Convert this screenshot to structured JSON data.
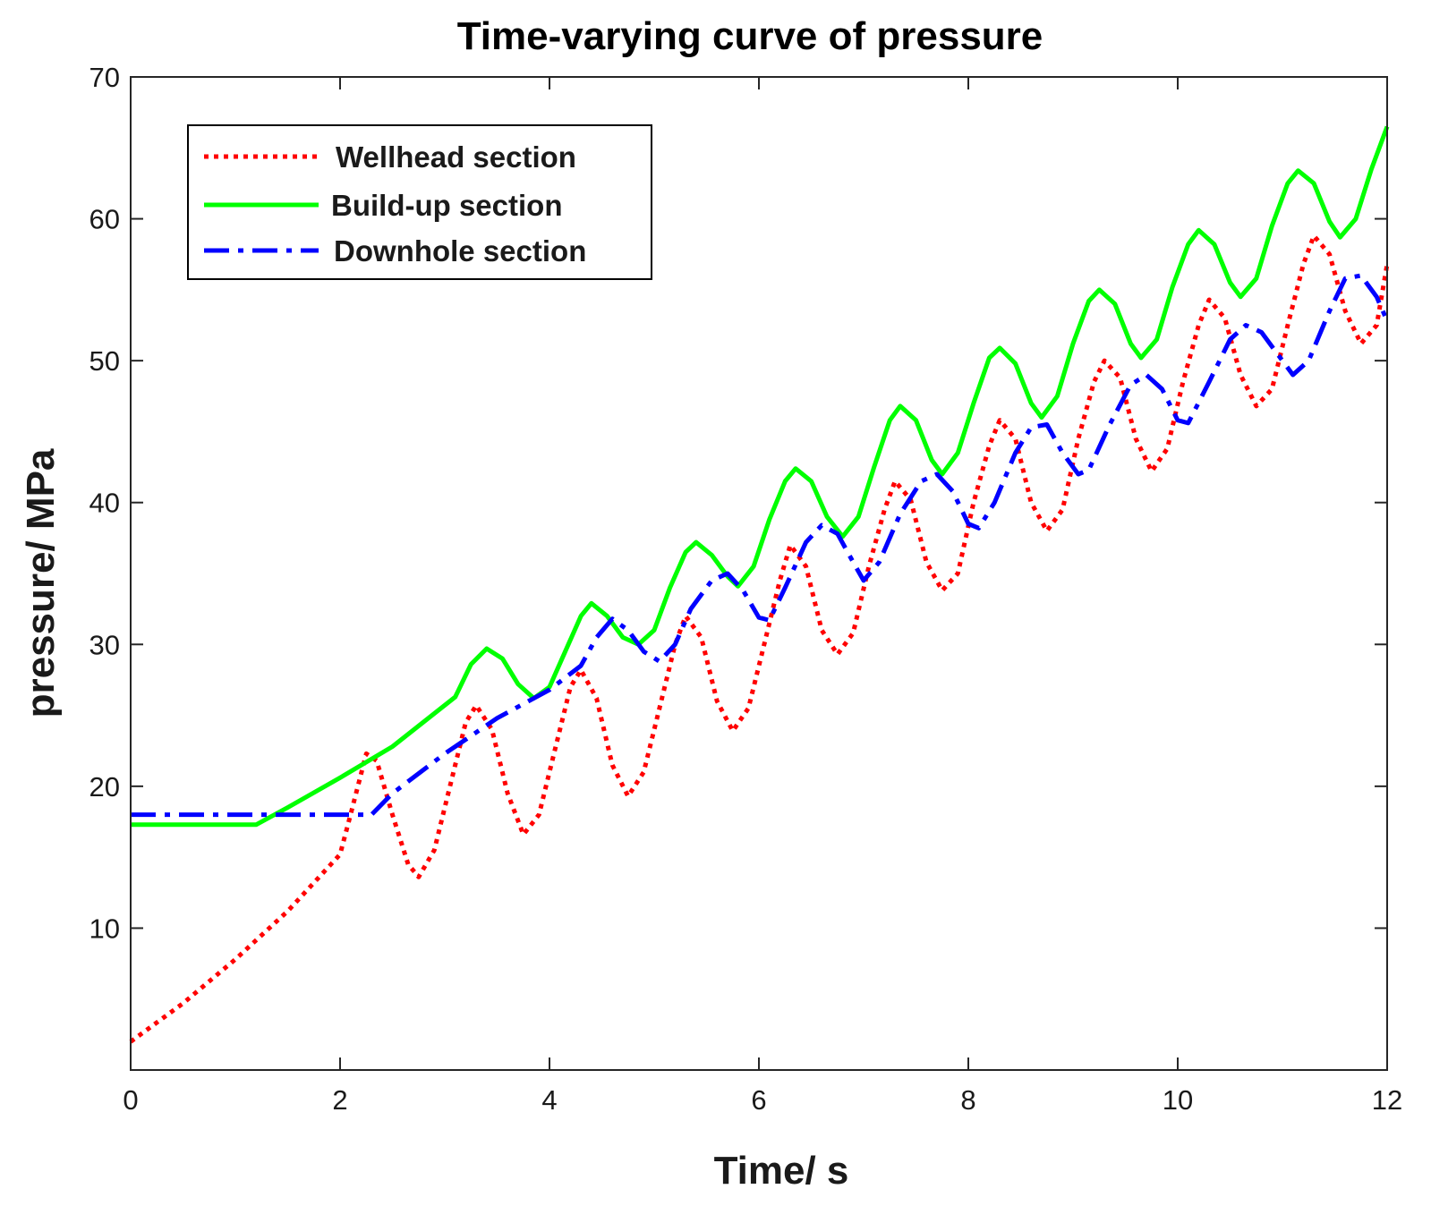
{
  "chart_data": {
    "type": "line",
    "title": "Time-varying curve of pressure",
    "xlabel": "Time/ s",
    "ylabel": "pressure/ MPa",
    "xlim": [
      0,
      12
    ],
    "ylim": [
      0,
      70
    ],
    "xticks": [
      0,
      2,
      4,
      6,
      8,
      10,
      12
    ],
    "yticks": [
      10,
      20,
      30,
      40,
      50,
      60,
      70
    ],
    "xtick_labels": [
      "0",
      "2",
      "4",
      "6",
      "8",
      "10",
      "12"
    ],
    "ytick_labels": [
      "10",
      "20",
      "30",
      "40",
      "50",
      "60",
      "70"
    ],
    "grid": false,
    "legend_position": "top-left",
    "series": [
      {
        "name": "Wellhead section",
        "color": "#ff0000",
        "style": "dotted",
        "points": [
          [
            0,
            2.0
          ],
          [
            0.5,
            4.7
          ],
          [
            1.0,
            7.8
          ],
          [
            1.5,
            11.2
          ],
          [
            2.0,
            15.2
          ],
          [
            2.1,
            18.0
          ],
          [
            2.25,
            22.3
          ],
          [
            2.35,
            21.8
          ],
          [
            2.5,
            18.0
          ],
          [
            2.65,
            14.5
          ],
          [
            2.75,
            13.6
          ],
          [
            2.9,
            15.5
          ],
          [
            3.05,
            20.0
          ],
          [
            3.2,
            24.5
          ],
          [
            3.3,
            25.7
          ],
          [
            3.45,
            24.0
          ],
          [
            3.6,
            19.5
          ],
          [
            3.75,
            16.6
          ],
          [
            3.9,
            18.0
          ],
          [
            4.05,
            22.5
          ],
          [
            4.2,
            27.0
          ],
          [
            4.3,
            28.2
          ],
          [
            4.45,
            26.2
          ],
          [
            4.6,
            21.5
          ],
          [
            4.75,
            19.3
          ],
          [
            4.9,
            21.0
          ],
          [
            5.05,
            25.5
          ],
          [
            5.2,
            30.0
          ],
          [
            5.3,
            32.0
          ],
          [
            5.45,
            30.5
          ],
          [
            5.6,
            26.0
          ],
          [
            5.75,
            23.9
          ],
          [
            5.9,
            25.5
          ],
          [
            6.05,
            30.0
          ],
          [
            6.2,
            34.5
          ],
          [
            6.3,
            37.0
          ],
          [
            6.45,
            35.5
          ],
          [
            6.6,
            31.0
          ],
          [
            6.75,
            29.3
          ],
          [
            6.9,
            30.8
          ],
          [
            7.05,
            35.5
          ],
          [
            7.2,
            39.5
          ],
          [
            7.3,
            41.5
          ],
          [
            7.45,
            40.2
          ],
          [
            7.6,
            35.8
          ],
          [
            7.75,
            33.8
          ],
          [
            7.9,
            35.0
          ],
          [
            8.05,
            40.0
          ],
          [
            8.2,
            44.0
          ],
          [
            8.3,
            45.8
          ],
          [
            8.45,
            44.5
          ],
          [
            8.6,
            40.0
          ],
          [
            8.75,
            38.0
          ],
          [
            8.9,
            39.5
          ],
          [
            9.05,
            44.5
          ],
          [
            9.2,
            48.5
          ],
          [
            9.3,
            50.0
          ],
          [
            9.45,
            48.8
          ],
          [
            9.6,
            44.5
          ],
          [
            9.75,
            42.2
          ],
          [
            9.9,
            43.8
          ],
          [
            10.05,
            48.5
          ],
          [
            10.2,
            52.5
          ],
          [
            10.3,
            54.3
          ],
          [
            10.45,
            53.0
          ],
          [
            10.6,
            49.0
          ],
          [
            10.75,
            46.8
          ],
          [
            10.9,
            48.0
          ],
          [
            11.05,
            52.5
          ],
          [
            11.2,
            56.8
          ],
          [
            11.3,
            58.8
          ],
          [
            11.45,
            57.5
          ],
          [
            11.6,
            53.5
          ],
          [
            11.75,
            51.2
          ],
          [
            11.9,
            52.5
          ],
          [
            12.0,
            56.8
          ]
        ]
      },
      {
        "name": "Build-up section",
        "color": "#00ff00",
        "style": "solid",
        "points": [
          [
            0,
            17.3
          ],
          [
            1.2,
            17.3
          ],
          [
            1.5,
            18.5
          ],
          [
            2.0,
            20.6
          ],
          [
            2.5,
            22.8
          ],
          [
            3.1,
            26.3
          ],
          [
            3.25,
            28.6
          ],
          [
            3.4,
            29.7
          ],
          [
            3.55,
            29.0
          ],
          [
            3.7,
            27.2
          ],
          [
            3.85,
            26.2
          ],
          [
            4.0,
            27.0
          ],
          [
            4.15,
            29.5
          ],
          [
            4.3,
            32.0
          ],
          [
            4.4,
            32.9
          ],
          [
            4.55,
            32.0
          ],
          [
            4.7,
            30.5
          ],
          [
            4.85,
            30.0
          ],
          [
            5.0,
            31.0
          ],
          [
            5.15,
            34.0
          ],
          [
            5.3,
            36.5
          ],
          [
            5.4,
            37.2
          ],
          [
            5.55,
            36.3
          ],
          [
            5.7,
            34.8
          ],
          [
            5.8,
            34.1
          ],
          [
            5.95,
            35.5
          ],
          [
            6.1,
            38.8
          ],
          [
            6.25,
            41.5
          ],
          [
            6.35,
            42.4
          ],
          [
            6.5,
            41.5
          ],
          [
            6.65,
            39.0
          ],
          [
            6.8,
            37.6
          ],
          [
            6.95,
            39.0
          ],
          [
            7.1,
            42.5
          ],
          [
            7.25,
            45.8
          ],
          [
            7.35,
            46.8
          ],
          [
            7.5,
            45.8
          ],
          [
            7.65,
            43.0
          ],
          [
            7.75,
            42.0
          ],
          [
            7.9,
            43.5
          ],
          [
            8.05,
            47.0
          ],
          [
            8.2,
            50.2
          ],
          [
            8.3,
            50.9
          ],
          [
            8.45,
            49.8
          ],
          [
            8.6,
            47.0
          ],
          [
            8.7,
            46.0
          ],
          [
            8.85,
            47.5
          ],
          [
            9.0,
            51.2
          ],
          [
            9.15,
            54.2
          ],
          [
            9.25,
            55.0
          ],
          [
            9.4,
            54.0
          ],
          [
            9.55,
            51.2
          ],
          [
            9.65,
            50.2
          ],
          [
            9.8,
            51.5
          ],
          [
            9.95,
            55.2
          ],
          [
            10.1,
            58.2
          ],
          [
            10.2,
            59.2
          ],
          [
            10.35,
            58.2
          ],
          [
            10.5,
            55.5
          ],
          [
            10.6,
            54.5
          ],
          [
            10.75,
            55.8
          ],
          [
            10.9,
            59.5
          ],
          [
            11.05,
            62.5
          ],
          [
            11.15,
            63.4
          ],
          [
            11.3,
            62.5
          ],
          [
            11.45,
            59.8
          ],
          [
            11.55,
            58.7
          ],
          [
            11.7,
            60.0
          ],
          [
            11.85,
            63.5
          ],
          [
            12.0,
            66.5
          ]
        ]
      },
      {
        "name": "Downhole section",
        "color": "#0000ff",
        "style": "dashdot",
        "points": [
          [
            0,
            18.0
          ],
          [
            2.3,
            18.0
          ],
          [
            2.5,
            19.5
          ],
          [
            3.0,
            22.3
          ],
          [
            3.5,
            24.8
          ],
          [
            4.0,
            26.8
          ],
          [
            4.3,
            28.5
          ],
          [
            4.45,
            30.5
          ],
          [
            4.6,
            31.8
          ],
          [
            4.75,
            31.0
          ],
          [
            4.9,
            29.5
          ],
          [
            5.05,
            28.8
          ],
          [
            5.2,
            30.0
          ],
          [
            5.35,
            32.5
          ],
          [
            5.55,
            34.5
          ],
          [
            5.7,
            35.0
          ],
          [
            5.85,
            33.8
          ],
          [
            6.0,
            31.9
          ],
          [
            6.1,
            31.7
          ],
          [
            6.25,
            34.0
          ],
          [
            6.45,
            37.2
          ],
          [
            6.6,
            38.4
          ],
          [
            6.75,
            37.8
          ],
          [
            6.9,
            35.8
          ],
          [
            7.0,
            34.5
          ],
          [
            7.15,
            35.8
          ],
          [
            7.35,
            39.2
          ],
          [
            7.55,
            41.5
          ],
          [
            7.7,
            42.0
          ],
          [
            7.85,
            40.8
          ],
          [
            8.0,
            38.5
          ],
          [
            8.1,
            38.2
          ],
          [
            8.25,
            40.0
          ],
          [
            8.45,
            43.5
          ],
          [
            8.6,
            45.3
          ],
          [
            8.75,
            45.5
          ],
          [
            8.9,
            43.5
          ],
          [
            9.05,
            42.0
          ],
          [
            9.15,
            42.3
          ],
          [
            9.35,
            45.5
          ],
          [
            9.55,
            48.3
          ],
          [
            9.7,
            49.0
          ],
          [
            9.85,
            48.0
          ],
          [
            10.0,
            45.8
          ],
          [
            10.1,
            45.6
          ],
          [
            10.3,
            48.5
          ],
          [
            10.5,
            51.5
          ],
          [
            10.65,
            52.5
          ],
          [
            10.8,
            52.0
          ],
          [
            10.95,
            50.5
          ],
          [
            11.1,
            49.0
          ],
          [
            11.25,
            50.0
          ],
          [
            11.45,
            53.5
          ],
          [
            11.6,
            55.8
          ],
          [
            11.75,
            56.0
          ],
          [
            11.9,
            54.5
          ],
          [
            12.0,
            52.8
          ]
        ]
      }
    ]
  }
}
